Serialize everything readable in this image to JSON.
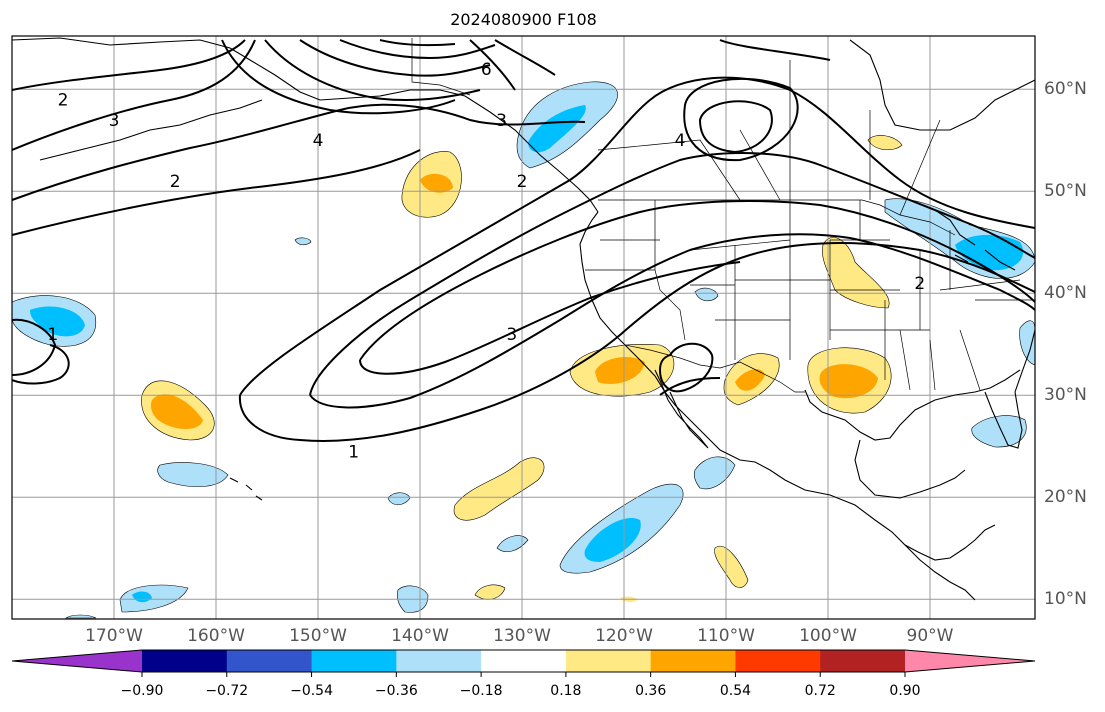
{
  "title": "2024080900 F108",
  "map": {
    "projection": "PlateCarree",
    "lon_range": [
      -180,
      -80
    ],
    "lat_range": [
      8,
      65
    ],
    "lon_ticks": [
      {
        "value": -170,
        "label": "170°W"
      },
      {
        "value": -160,
        "label": "160°W"
      },
      {
        "value": -150,
        "label": "150°W"
      },
      {
        "value": -140,
        "label": "140°W"
      },
      {
        "value": -130,
        "label": "130°W"
      },
      {
        "value": -120,
        "label": "120°W"
      },
      {
        "value": -110,
        "label": "110°W"
      },
      {
        "value": -100,
        "label": "100°W"
      },
      {
        "value": -90,
        "label": "90°W"
      }
    ],
    "lat_ticks": [
      {
        "value": 10,
        "label": "10°N"
      },
      {
        "value": 20,
        "label": "20°N"
      },
      {
        "value": 30,
        "label": "30°N"
      },
      {
        "value": 40,
        "label": "40°N"
      },
      {
        "value": 50,
        "label": "50°N"
      },
      {
        "value": 60,
        "label": "60°N"
      }
    ],
    "contour_labels": [
      {
        "text": "2",
        "lon": -175,
        "lat": 59
      },
      {
        "text": "3",
        "lon": -170,
        "lat": 57
      },
      {
        "text": "4",
        "lon": -150,
        "lat": 55
      },
      {
        "text": "6",
        "lon": -133.5,
        "lat": 62
      },
      {
        "text": "3",
        "lon": -132,
        "lat": 57
      },
      {
        "text": "4",
        "lon": -114.5,
        "lat": 55
      },
      {
        "text": "2",
        "lon": -164,
        "lat": 51
      },
      {
        "text": "2",
        "lon": -130,
        "lat": 51
      },
      {
        "text": "3",
        "lon": -131,
        "lat": 36
      },
      {
        "text": "1",
        "lon": -146.5,
        "lat": 24.5
      },
      {
        "text": "1",
        "lon": -176,
        "lat": 36
      },
      {
        "text": "2",
        "lon": -91,
        "lat": 41
      }
    ]
  },
  "colorbar": {
    "levels": [
      -0.9,
      -0.72,
      -0.54,
      -0.36,
      -0.18,
      0.18,
      0.36,
      0.54,
      0.72,
      0.9
    ],
    "tick_labels": [
      "−0.90",
      "−0.72",
      "−0.54",
      "−0.36",
      "−0.18",
      "0.18",
      "0.36",
      "0.54",
      "0.72",
      "0.90"
    ],
    "colors": [
      "#9933cc",
      "#00008b",
      "#3355cc",
      "#00bfff",
      "#aee0fa",
      "#ffffff",
      "#ffe985",
      "#ffa500",
      "#ff3a00",
      "#b22222",
      "#ff88aa"
    ],
    "extend": "both"
  }
}
